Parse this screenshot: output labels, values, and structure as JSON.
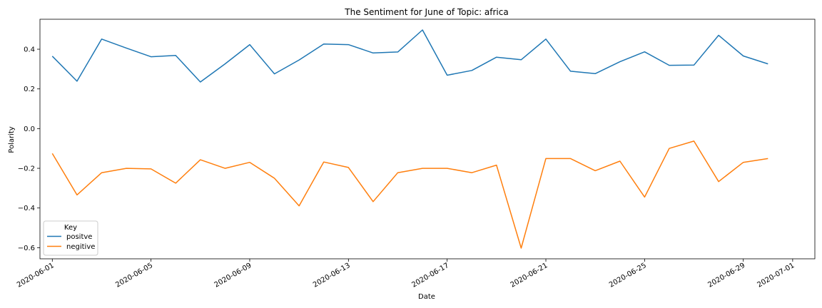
{
  "chart_data": {
    "type": "line",
    "title": "The Sentiment for June of Topic: africa",
    "xlabel": "Date",
    "ylabel": "Polarity",
    "x": [
      "2020-06-01",
      "2020-06-02",
      "2020-06-03",
      "2020-06-04",
      "2020-06-05",
      "2020-06-06",
      "2020-06-07",
      "2020-06-08",
      "2020-06-09",
      "2020-06-10",
      "2020-06-11",
      "2020-06-12",
      "2020-06-13",
      "2020-06-14",
      "2020-06-15",
      "2020-06-16",
      "2020-06-17",
      "2020-06-18",
      "2020-06-19",
      "2020-06-20",
      "2020-06-21",
      "2020-06-22",
      "2020-06-23",
      "2020-06-24",
      "2020-06-25",
      "2020-06-26",
      "2020-06-27",
      "2020-06-28",
      "2020-06-29",
      "2020-06-30"
    ],
    "series": [
      {
        "name": "positve",
        "color": "#1f77b4",
        "values": [
          0.365,
          0.239,
          0.451,
          0.406,
          0.362,
          0.369,
          0.235,
          0.326,
          0.423,
          0.276,
          0.346,
          0.426,
          0.423,
          0.381,
          0.386,
          0.497,
          0.269,
          0.293,
          0.36,
          0.347,
          0.451,
          0.289,
          0.277,
          0.337,
          0.387,
          0.319,
          0.32,
          0.47,
          0.366,
          0.326
        ]
      },
      {
        "name": "negitive",
        "color": "#ff7f0e",
        "values": [
          -0.125,
          -0.334,
          -0.222,
          -0.2,
          -0.203,
          -0.275,
          -0.157,
          -0.2,
          -0.17,
          -0.25,
          -0.389,
          -0.168,
          -0.196,
          -0.368,
          -0.222,
          -0.2,
          -0.2,
          -0.222,
          -0.184,
          -0.602,
          -0.151,
          -0.151,
          -0.212,
          -0.164,
          -0.345,
          -0.1,
          -0.063,
          -0.267,
          -0.17,
          -0.151
        ]
      }
    ],
    "xticks": [
      "2020-06-01",
      "2020-06-05",
      "2020-06-09",
      "2020-06-13",
      "2020-06-17",
      "2020-06-21",
      "2020-06-25",
      "2020-06-29",
      "2020-07-01"
    ],
    "yticks": [
      "0.4",
      "0.2",
      "0.0",
      "−0.2",
      "−0.4",
      "−0.6"
    ],
    "ytick_values": [
      0.4,
      0.2,
      0.0,
      -0.2,
      -0.4,
      -0.6
    ],
    "xlim": [
      "2020-05-31",
      "2020-07-01"
    ],
    "ylim": [
      -0.656,
      0.551
    ],
    "legend": {
      "title": "Key",
      "placement": "lower-left"
    },
    "grid": false
  }
}
